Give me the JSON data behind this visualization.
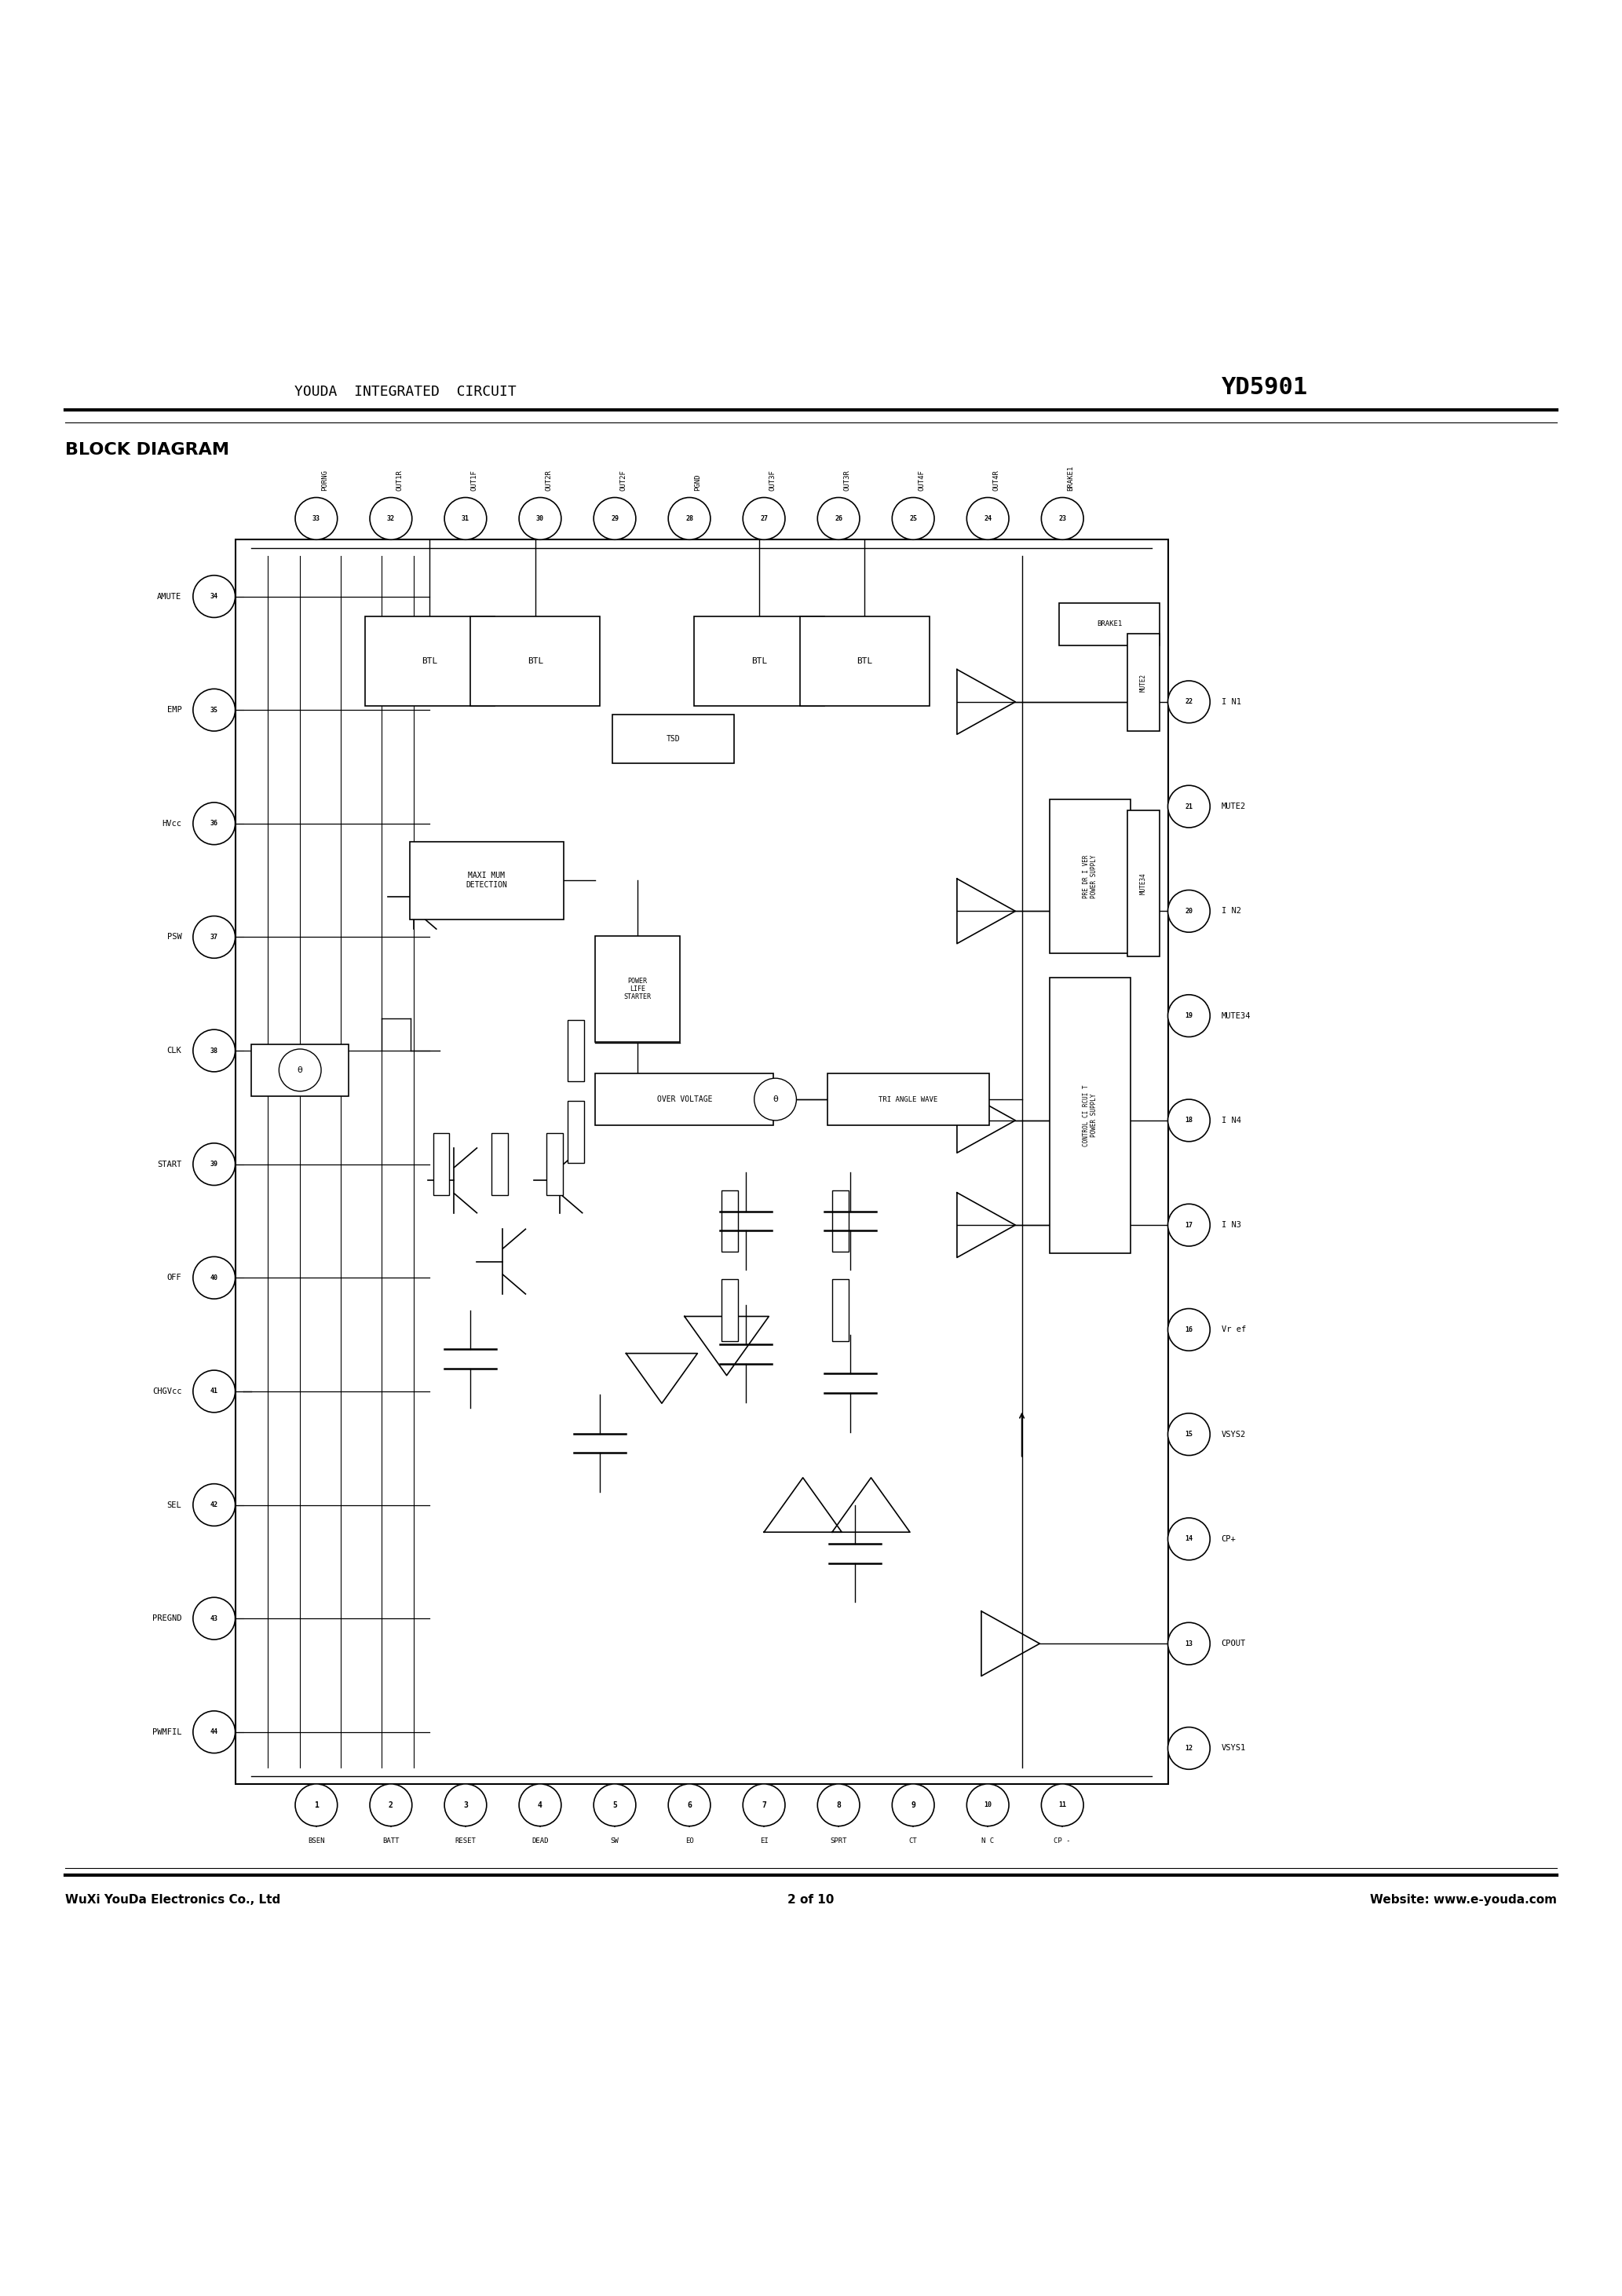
{
  "page_title_left": "YOUDA  INTEGRATED  CIRCUIT",
  "page_title_right": "YD5901",
  "section_title": "BLOCK DIAGRAM",
  "footer_left": "WuXi YouDa Electronics Co., Ltd",
  "footer_center": "2 of 10",
  "footer_right": "Website: www.e-youda.com",
  "bg_color": "#ffffff",
  "text_color": "#000000",
  "line_color": "#000000",
  "pin_labels_top": [
    "PORNG",
    "OUT1R",
    "OUT1F",
    "OUT2R",
    "OUT2F",
    "PGND",
    "OUT3F",
    "OUT3R",
    "OUT4F",
    "OUT4R",
    "BRAKE1"
  ],
  "pin_numbers_top": [
    33,
    32,
    31,
    30,
    29,
    28,
    27,
    26,
    25,
    24,
    23
  ],
  "pin_labels_right": [
    "I N1",
    "MUTE2",
    "I N2",
    "MUTE34",
    "I N4",
    "I N3",
    "Vr ef",
    "VSYS2",
    "CP+",
    "CPOUT",
    "VSYS1"
  ],
  "pin_numbers_right": [
    22,
    21,
    20,
    19,
    18,
    17,
    16,
    15,
    14,
    13,
    12
  ],
  "pin_labels_bottom": [
    "BSEN",
    "BATT",
    "RESET",
    "DEAD",
    "SW",
    "EO",
    "EI",
    "SPRT",
    "CT",
    "N C",
    "CP -"
  ],
  "pin_numbers_bottom": [
    1,
    2,
    3,
    4,
    5,
    6,
    7,
    8,
    9,
    10,
    11
  ],
  "pin_labels_left": [
    "AMUTE",
    "EMP",
    "HVcc",
    "PSW",
    "CLK",
    "START",
    "OFF",
    "CHGVcc",
    "SEL",
    "PREGND",
    "PWMFIL"
  ],
  "pin_numbers_left": [
    34,
    35,
    36,
    37,
    38,
    39,
    40,
    41,
    42,
    43,
    44
  ]
}
